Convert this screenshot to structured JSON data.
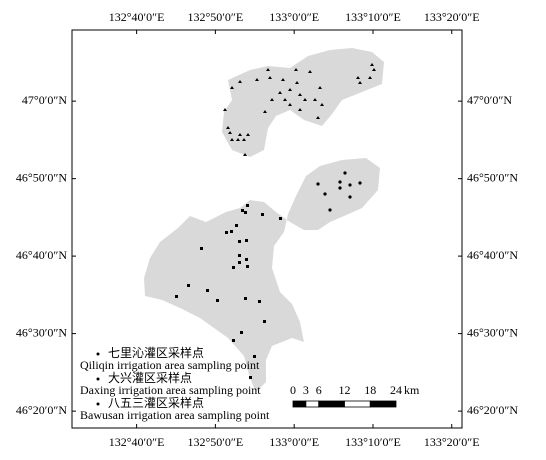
{
  "map": {
    "lonlim": [
      132.53,
      133.355
    ],
    "latlim": [
      46.297,
      47.153
    ],
    "lonticks": [
      {
        "value": 132.6667,
        "label": "132°40′0″E"
      },
      {
        "value": 132.8333,
        "label": "132°50′0″E"
      },
      {
        "value": 133.0,
        "label": "133°0′0″E"
      },
      {
        "value": 133.1667,
        "label": "133°10′0″E"
      },
      {
        "value": 133.3333,
        "label": "133°20′0″E"
      }
    ],
    "latticks": [
      {
        "value": 47.0,
        "label": "47°0′0″N"
      },
      {
        "value": 46.8333,
        "label": "46°50′0″N"
      },
      {
        "value": 46.6667,
        "label": "46°40′0″N"
      },
      {
        "value": 46.5,
        "label": "46°30′0″N"
      },
      {
        "value": 46.3333,
        "label": "46°20′0″N"
      }
    ],
    "legend": [
      {
        "zh": "七里沁灌区采样点",
        "en": "Qiliqin irrigation area sampling point"
      },
      {
        "zh": "大兴灌区采样点",
        "en": "Daxing irrigation area sampling point"
      },
      {
        "zh": "八五三灌区采样点",
        "en": "Bawusan irrigation area sampling point"
      }
    ],
    "scale": {
      "ticks": [
        0,
        3,
        6,
        12,
        18,
        24
      ],
      "unit": "km"
    }
  }
}
